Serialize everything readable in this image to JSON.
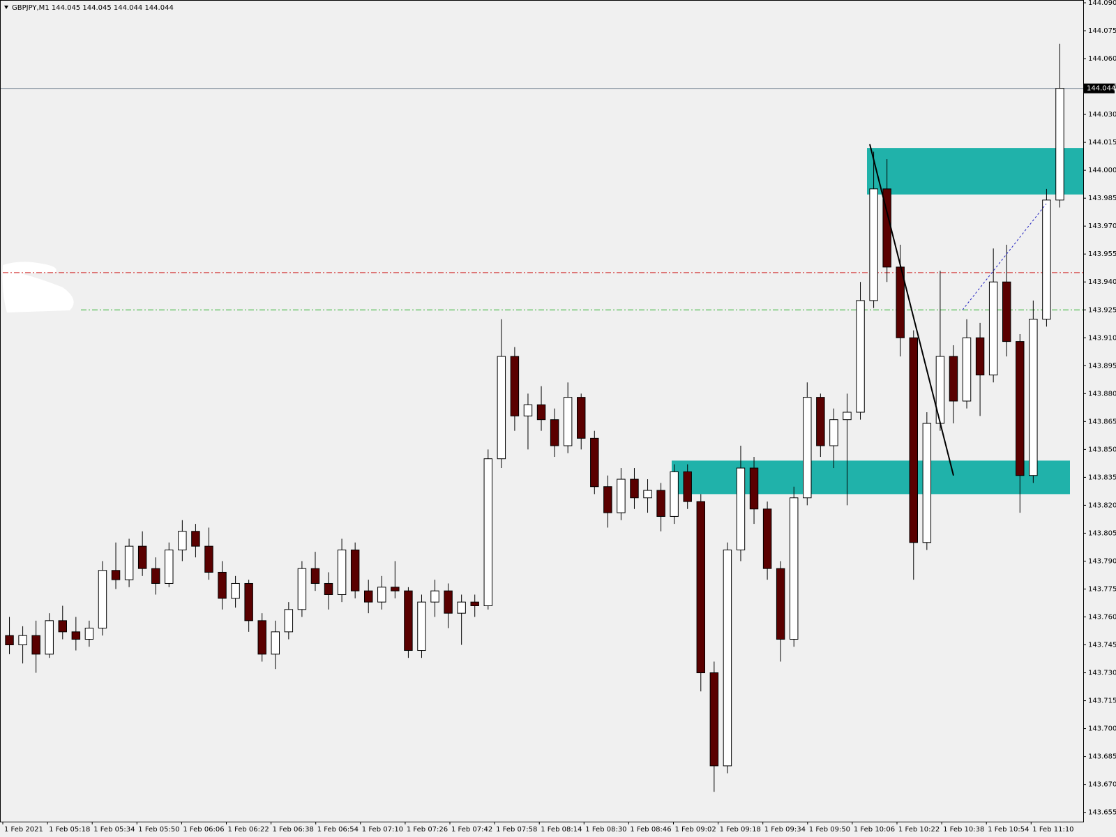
{
  "chart_data": {
    "type": "candlestick",
    "title": "GBPJPY,M1  144.045 144.045 144.044 144.044",
    "categories": [
      "1 Feb 2021",
      "1 Feb 05:18",
      "1 Feb 05:34",
      "1 Feb 05:50",
      "1 Feb 06:06",
      "1 Feb 06:22",
      "1 Feb 06:38",
      "1 Feb 06:54",
      "1 Feb 07:10",
      "1 Feb 07:26",
      "1 Feb 07:42",
      "1 Feb 07:58",
      "1 Feb 08:14",
      "1 Feb 08:30",
      "1 Feb 08:46",
      "1 Feb 09:02",
      "1 Feb 09:18",
      "1 Feb 09:34",
      "1 Feb 09:50",
      "1 Feb 10:06",
      "1 Feb 10:22",
      "1 Feb 10:38",
      "1 Feb 10:54",
      "1 Feb 11:10"
    ],
    "ylim": [
      143.65,
      144.0915
    ],
    "yticks": [
      {
        "value": 144.09,
        "label": "144.090"
      },
      144.075,
      {
        "value": 144.06,
        "label": "144.060"
      },
      144.045,
      {
        "value": 144.03,
        "label": "144.030"
      },
      144.015,
      {
        "value": 144.0,
        "label": "144.000"
      },
      143.985,
      {
        "value": 143.97,
        "label": "143.970"
      },
      143.955,
      {
        "value": 143.94,
        "label": "143.940"
      },
      143.925,
      {
        "value": 143.91,
        "label": "143.910"
      },
      143.895,
      {
        "value": 143.88,
        "label": "143.880"
      },
      143.865,
      {
        "value": 143.85,
        "label": "143.850"
      },
      143.835,
      {
        "value": 143.82,
        "label": "143.820"
      },
      143.805,
      {
        "value": 143.79,
        "label": "143.790"
      },
      143.775,
      {
        "value": 143.76,
        "label": "143.760"
      },
      143.745,
      {
        "value": 143.73,
        "label": "143.730"
      },
      143.715,
      {
        "value": 143.7,
        "label": "143.700"
      },
      143.685,
      {
        "value": 143.67,
        "label": "143.670"
      },
      143.655
    ],
    "current_price": 144.044,
    "bull_color": "#ffffff",
    "bear_color": "#5a0000",
    "wick_color": "#000000",
    "levels": [
      {
        "value": 143.945,
        "color": "#d02020"
      },
      {
        "value": 143.925,
        "color": "#30b030"
      }
    ],
    "zones": [
      {
        "top": 144.012,
        "bottom": 143.987,
        "color": "#20b2aa"
      },
      {
        "top": 143.844,
        "bottom": 143.826,
        "color": "#20b2aa"
      }
    ],
    "trendline": [
      144.014,
      143.836
    ],
    "dashed_line": [
      143.925,
      143.982
    ],
    "candles": [
      [
        143.75,
        143.76,
        143.74,
        143.745
      ],
      [
        143.745,
        143.755,
        143.735,
        143.75
      ],
      [
        143.75,
        143.758,
        143.73,
        143.74
      ],
      [
        143.74,
        143.762,
        143.738,
        143.758
      ],
      [
        143.758,
        143.766,
        143.748,
        143.752
      ],
      [
        143.752,
        143.76,
        143.742,
        143.748
      ],
      [
        143.748,
        143.758,
        143.744,
        143.754
      ],
      [
        143.754,
        143.79,
        143.75,
        143.785
      ],
      [
        143.785,
        143.8,
        143.775,
        143.78
      ],
      [
        143.78,
        143.802,
        143.776,
        143.798
      ],
      [
        143.798,
        143.806,
        143.782,
        143.786
      ],
      [
        143.786,
        143.792,
        143.772,
        143.778
      ],
      [
        143.778,
        143.8,
        143.776,
        143.796
      ],
      [
        143.796,
        143.812,
        143.79,
        143.806
      ],
      [
        143.806,
        143.81,
        143.792,
        143.798
      ],
      [
        143.798,
        143.808,
        143.78,
        143.784
      ],
      [
        143.784,
        143.79,
        143.764,
        143.77
      ],
      [
        143.77,
        143.782,
        143.765,
        143.778
      ],
      [
        143.778,
        143.78,
        143.752,
        143.758
      ],
      [
        143.758,
        143.762,
        143.736,
        143.74
      ],
      [
        143.74,
        143.758,
        143.732,
        143.752
      ],
      [
        143.752,
        143.768,
        143.748,
        143.764
      ],
      [
        143.764,
        143.79,
        143.76,
        143.786
      ],
      [
        143.786,
        143.795,
        143.774,
        143.778
      ],
      [
        143.778,
        143.784,
        143.764,
        143.772
      ],
      [
        143.772,
        143.802,
        143.768,
        143.796
      ],
      [
        143.796,
        143.8,
        143.77,
        143.774
      ],
      [
        143.774,
        143.78,
        143.762,
        143.768
      ],
      [
        143.768,
        143.782,
        143.764,
        143.776
      ],
      [
        143.776,
        143.79,
        143.77,
        143.774
      ],
      [
        143.774,
        143.776,
        143.738,
        143.742
      ],
      [
        143.742,
        143.772,
        143.738,
        143.768
      ],
      [
        143.768,
        143.78,
        143.76,
        143.774
      ],
      [
        143.774,
        143.778,
        143.754,
        143.762
      ],
      [
        143.762,
        143.772,
        143.745,
        143.768
      ],
      [
        143.768,
        143.772,
        143.76,
        143.766
      ],
      [
        143.766,
        143.85,
        143.764,
        143.845
      ],
      [
        143.845,
        143.92,
        143.84,
        143.9
      ],
      [
        143.9,
        143.905,
        143.86,
        143.868
      ],
      [
        143.868,
        143.88,
        143.85,
        143.874
      ],
      [
        143.874,
        143.884,
        143.86,
        143.866
      ],
      [
        143.866,
        143.872,
        143.846,
        143.852
      ],
      [
        143.852,
        143.886,
        143.848,
        143.878
      ],
      [
        143.878,
        143.88,
        143.85,
        143.856
      ],
      [
        143.856,
        143.86,
        143.826,
        143.83
      ],
      [
        143.83,
        143.836,
        143.808,
        143.816
      ],
      [
        143.816,
        143.84,
        143.812,
        143.834
      ],
      [
        143.834,
        143.84,
        143.818,
        143.824
      ],
      [
        143.824,
        143.834,
        143.816,
        143.828
      ],
      [
        143.828,
        143.832,
        143.806,
        143.814
      ],
      [
        143.814,
        143.842,
        143.81,
        143.838
      ],
      [
        143.838,
        143.842,
        143.818,
        143.822
      ],
      [
        143.822,
        143.826,
        143.72,
        143.73
      ],
      [
        143.73,
        143.736,
        143.666,
        143.68
      ],
      [
        143.68,
        143.8,
        143.676,
        143.796
      ],
      [
        143.796,
        143.852,
        143.79,
        143.84
      ],
      [
        143.84,
        143.846,
        143.81,
        143.818
      ],
      [
        143.818,
        143.822,
        143.78,
        143.786
      ],
      [
        143.786,
        143.79,
        143.736,
        143.748
      ],
      [
        143.748,
        143.83,
        143.744,
        143.824
      ],
      [
        143.824,
        143.886,
        143.82,
        143.878
      ],
      [
        143.878,
        143.88,
        143.846,
        143.852
      ],
      [
        143.852,
        143.872,
        143.84,
        143.866
      ],
      [
        143.866,
        143.88,
        143.82,
        143.87
      ],
      [
        143.87,
        143.94,
        143.866,
        143.93
      ],
      [
        143.93,
        144.01,
        143.926,
        143.99
      ],
      [
        143.99,
        144.006,
        143.94,
        143.948
      ],
      [
        143.948,
        143.96,
        143.9,
        143.91
      ],
      [
        143.91,
        143.914,
        143.78,
        143.8
      ],
      [
        143.8,
        143.87,
        143.796,
        143.864
      ],
      [
        143.864,
        143.946,
        143.86,
        143.9
      ],
      [
        143.9,
        143.906,
        143.864,
        143.876
      ],
      [
        143.876,
        143.92,
        143.872,
        143.91
      ],
      [
        143.91,
        143.918,
        143.868,
        143.89
      ],
      [
        143.89,
        143.958,
        143.886,
        143.94
      ],
      [
        143.94,
        143.96,
        143.9,
        143.908
      ],
      [
        143.908,
        143.912,
        143.816,
        143.836
      ],
      [
        143.836,
        143.93,
        143.832,
        143.92
      ],
      [
        143.92,
        143.99,
        143.916,
        143.984
      ],
      [
        143.984,
        144.068,
        143.98,
        144.044
      ]
    ]
  }
}
